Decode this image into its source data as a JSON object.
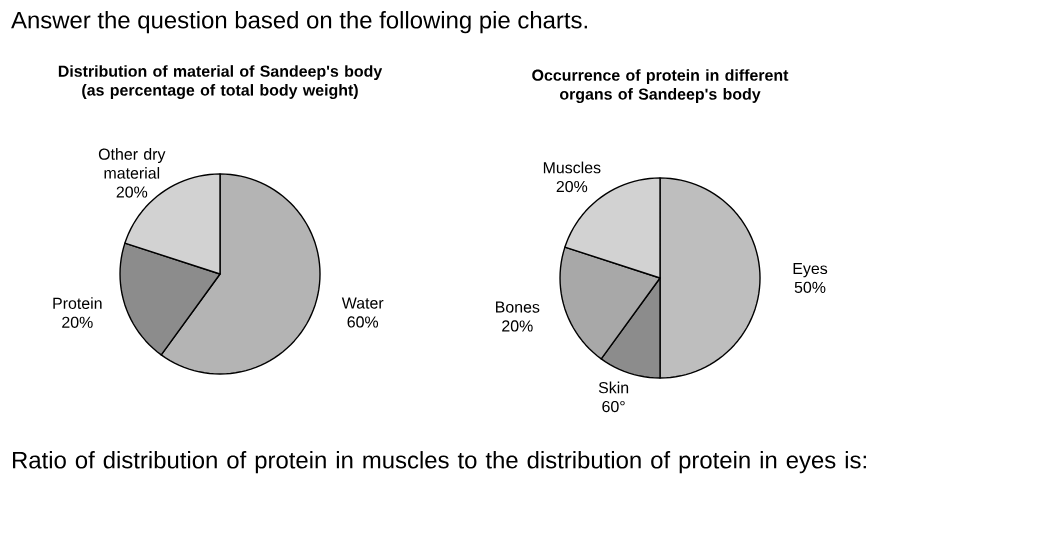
{
  "chart_data": [
    {
      "type": "pie",
      "title": "Distribution of material of Sandeep's body",
      "subtitle": "(as percentage of total body weight)",
      "categories": [
        "Water",
        "Protein",
        "Other dry material"
      ],
      "values": [
        60,
        20,
        20
      ],
      "value_labels": [
        "60%",
        "20%",
        "20%"
      ],
      "colors": [
        "#b4b4b4",
        "#8c8c8c",
        "#d2d2d2"
      ],
      "annotations": [
        "Answer the question based on the following pie charts."
      ]
    },
    {
      "type": "pie",
      "title": "Occurrence of protein in different organs of Sandeep's body",
      "categories": [
        "Eyes",
        "Skin",
        "Bones",
        "Muscles"
      ],
      "values": [
        50,
        10,
        20,
        20
      ],
      "value_labels": [
        "50%",
        null,
        "20%",
        "20%"
      ],
      "colors": [
        "#bebebe",
        "#8c8c8c",
        "#a8a8a8",
        "#d2d2d2"
      ],
      "annotations": [
        "Ratio of distribution of protein in muscles to the distribution of protein in eyes is:",
        "60°"
      ]
    }
  ]
}
